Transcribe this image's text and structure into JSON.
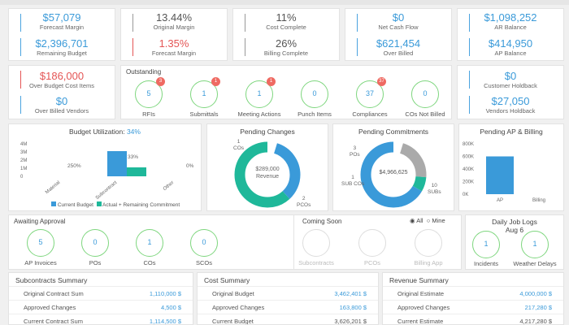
{
  "kpis": {
    "forecast_margin": {
      "value": "$57,079",
      "label": "Forecast Margin"
    },
    "remaining_budget": {
      "value": "$2,396,701",
      "label": "Remaining Budget"
    },
    "original_margin": {
      "value": "13.44%",
      "label": "Original Margin"
    },
    "forecast_margin_pct": {
      "value": "1.35%",
      "label": "Forecast Margin"
    },
    "cost_complete": {
      "value": "11%",
      "label": "Cost Complete"
    },
    "billing_complete": {
      "value": "26%",
      "label": "Billing Complete"
    },
    "net_cash_flow": {
      "value": "$0",
      "label": "Net Cash Flow"
    },
    "over_billed": {
      "value": "$621,454",
      "label": "Over Billed"
    },
    "ar_balance": {
      "value": "$1,098,252",
      "label": "AR Balance"
    },
    "ap_balance": {
      "value": "$414,950",
      "label": "AP Balance"
    },
    "over_budget": {
      "value": "$186,000",
      "label": "Over Budget Cost Items"
    },
    "over_billed_vendors": {
      "value": "$0",
      "label": "Over Billed Vendors"
    },
    "customer_holdback": {
      "value": "$0",
      "label": "Customer Holdback"
    },
    "vendors_holdback": {
      "value": "$27,050",
      "label": "Vendors Holdback"
    }
  },
  "outstanding": {
    "title": "Outstanding",
    "items": [
      {
        "value": "5",
        "label": "RFIs",
        "badge": "3"
      },
      {
        "value": "1",
        "label": "Submittals",
        "badge": "1"
      },
      {
        "value": "1",
        "label": "Meeting Actions",
        "badge": "1"
      },
      {
        "value": "0",
        "label": "Punch Items",
        "badge": ""
      },
      {
        "value": "37",
        "label": "Compliances",
        "badge": "37"
      },
      {
        "value": "0",
        "label": "COs Not Billed",
        "badge": ""
      }
    ]
  },
  "budget_util": {
    "title": "Budget Utilization:",
    "pct": "34%",
    "legend_current": "Current Budget",
    "legend_actual": "Actual + Remaining Commitment",
    "left_pct": "250%",
    "right_pct": "33%",
    "other_pct": "0%"
  },
  "pending_changes": {
    "title": "Pending Changes",
    "center_value": "$289,000",
    "center_label": "Revenue",
    "lbl_cos_n": "1",
    "lbl_cos": "COs",
    "lbl_pcos_n": "2",
    "lbl_pcos": "PCOs"
  },
  "pending_commit": {
    "title": "Pending Commitments",
    "center_value": "$4,966,625",
    "lbl_pos_n": "3",
    "lbl_pos": "POs",
    "lbl_sub_n": "1",
    "lbl_sub": "SUB COs",
    "lbl_subs_n": "10",
    "lbl_subs": "SUBs"
  },
  "pending_ap": {
    "title": "Pending AP & Billing"
  },
  "awaiting": {
    "title": "Awaiting Approval",
    "items": [
      {
        "value": "5",
        "label": "AP Invoices"
      },
      {
        "value": "0",
        "label": "POs"
      },
      {
        "value": "1",
        "label": "COs"
      },
      {
        "value": "0",
        "label": "SCOs"
      }
    ]
  },
  "coming_soon": {
    "title": "Coming Soon",
    "opt_all": "All",
    "opt_mine": "Mine",
    "items": [
      {
        "label": "Subcontracts"
      },
      {
        "label": "PCOs"
      },
      {
        "label": "Billing App"
      }
    ]
  },
  "daily_logs": {
    "title": "Daily Job Logs",
    "date": "Aug 6",
    "items": [
      {
        "value": "1",
        "label": "Incidents"
      },
      {
        "value": "1",
        "label": "Weather Delays"
      }
    ]
  },
  "subcontracts": {
    "title": "Subcontracts Summary",
    "rows": [
      {
        "k": "Original Contract Sum",
        "v": "1,110,000 $"
      },
      {
        "k": "Approved Changes",
        "v": "4,500 $"
      },
      {
        "k": "Current Contract Sum",
        "v": "1,114,500 $"
      }
    ]
  },
  "cost": {
    "title": "Cost Summary",
    "rows": [
      {
        "k": "Original Budget",
        "v": "3,462,401 $"
      },
      {
        "k": "Approved Changes",
        "v": "163,800 $"
      },
      {
        "k": "Current Budget",
        "v": "3,626,201 $"
      }
    ]
  },
  "revenue": {
    "title": "Revenue Summary",
    "rows": [
      {
        "k": "Original Estimate",
        "v": "4,000,000 $"
      },
      {
        "k": "Approved Changes",
        "v": "217,280 $"
      },
      {
        "k": "Current Estimate",
        "v": "4,217,280 $"
      }
    ]
  },
  "chart_data": [
    {
      "type": "bar",
      "title": "Budget Utilization:",
      "categories": [
        "Material",
        "Subcontract",
        "Other"
      ],
      "y_ticks": [
        "4M",
        "3M",
        "2M",
        "1M",
        "0"
      ],
      "ylim": [
        0,
        4
      ],
      "series": [
        {
          "name": "Current Budget",
          "values": [
            0,
            3.1,
            0
          ]
        },
        {
          "name": "Actual + Remaining Commitment",
          "values": [
            0,
            1.1,
            0
          ]
        }
      ]
    },
    {
      "type": "pie",
      "title": "Pending Changes",
      "labels": [
        "COs",
        "PCOs"
      ],
      "values": [
        1,
        2
      ]
    },
    {
      "type": "pie",
      "title": "Pending Commitments",
      "labels": [
        "POs",
        "SUB COs",
        "SUBs"
      ],
      "values": [
        3,
        1,
        10
      ]
    },
    {
      "type": "bar",
      "title": "Pending AP & Billing",
      "categories": [
        "AP",
        "Billing"
      ],
      "values": [
        600,
        0
      ],
      "y_ticks": [
        "800K",
        "600K",
        "400K",
        "200K",
        "0K"
      ],
      "ylim": [
        0,
        800
      ]
    }
  ],
  "colors": {
    "accent": "#3a9ad9",
    "teal": "#1fb89a",
    "red": "#e45555",
    "green_ring": "#7ed67e",
    "grey": "#b0b0b0"
  }
}
